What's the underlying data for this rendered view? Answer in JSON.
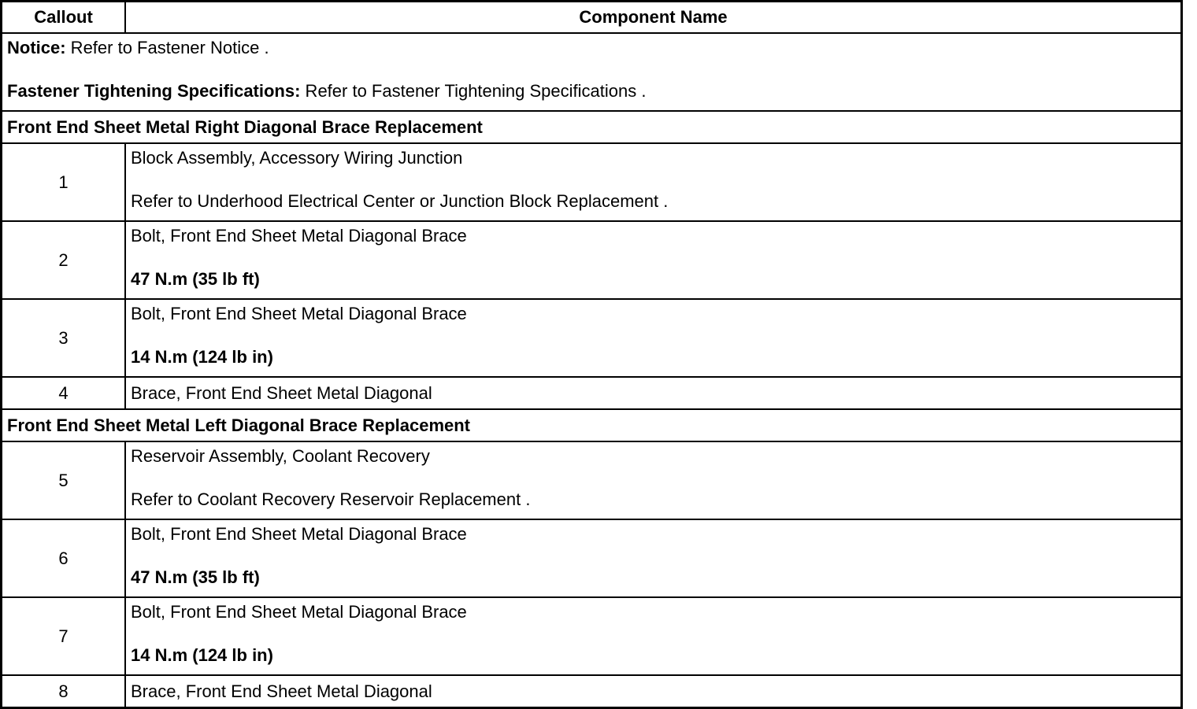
{
  "table": {
    "headers": [
      "Callout",
      "Component Name"
    ],
    "notice": {
      "notice_label": "Notice:",
      "notice_text": " Refer to Fastener Notice .",
      "spec_label": "Fastener Tightening Specifications:",
      "spec_text": " Refer to Fastener Tightening Specifications ."
    },
    "sections": [
      {
        "title": "Front End Sheet Metal Right Diagonal Brace Replacement",
        "rows": [
          {
            "callout": "1",
            "name": "Block Assembly, Accessory Wiring Junction",
            "note": "Refer to Underhood Electrical Center or Junction Block Replacement .",
            "bold": false
          },
          {
            "callout": "2",
            "name": "Bolt, Front End Sheet Metal Diagonal Brace",
            "note": "47 N.m (35 lb ft)",
            "bold": true
          },
          {
            "callout": "3",
            "name": "Bolt, Front End Sheet Metal Diagonal Brace",
            "note": "14 N.m (124 lb in)",
            "bold": true
          },
          {
            "callout": "4",
            "name": "Brace, Front End Sheet Metal Diagonal"
          }
        ]
      },
      {
        "title": "Front End Sheet Metal Left Diagonal Brace Replacement",
        "rows": [
          {
            "callout": "5",
            "name": "Reservoir Assembly, Coolant Recovery",
            "note": "Refer to Coolant Recovery Reservoir Replacement .",
            "bold": false
          },
          {
            "callout": "6",
            "name": "Bolt, Front End Sheet Metal Diagonal Brace",
            "note": "47 N.m (35 lb ft)",
            "bold": true
          },
          {
            "callout": "7",
            "name": "Bolt, Front End Sheet Metal Diagonal Brace",
            "note": "14 N.m (124 lb in)",
            "bold": true
          },
          {
            "callout": "8",
            "name": "Brace, Front End Sheet Metal Diagonal"
          }
        ]
      }
    ]
  }
}
